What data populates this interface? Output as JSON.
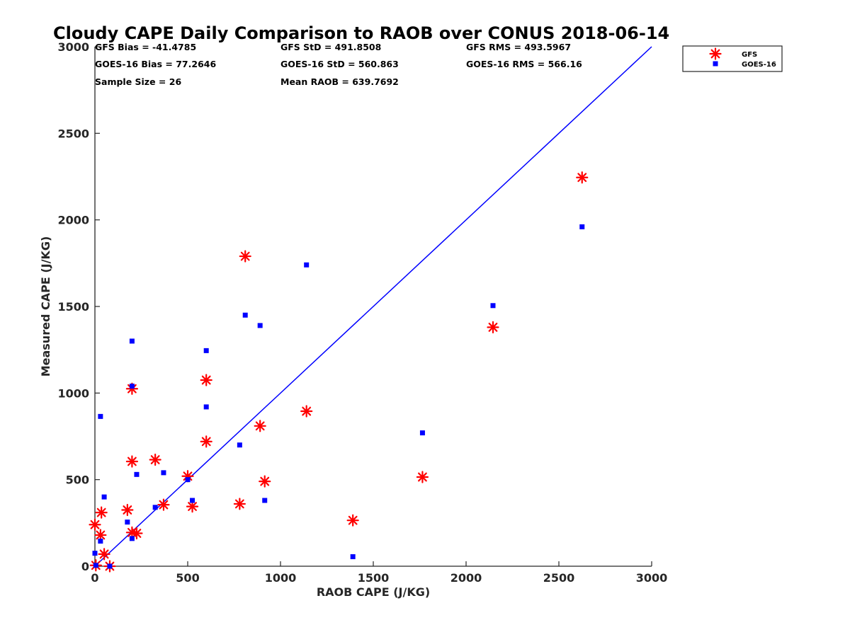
{
  "chart_data": {
    "type": "scatter",
    "title": "Cloudy CAPE Daily Comparison to RAOB over CONUS 2018-06-14",
    "xlabel": "RAOB CAPE (J/KG)",
    "ylabel": "Measured CAPE (J/KG)",
    "xlim": [
      0,
      3000
    ],
    "ylim": [
      0,
      3000
    ],
    "xticks": [
      0,
      500,
      1000,
      1500,
      2000,
      2500,
      3000
    ],
    "yticks": [
      0,
      500,
      1000,
      1500,
      2000,
      2500,
      3000
    ],
    "grid": false,
    "legend_position": "top-right",
    "reference_line": {
      "x": [
        0,
        3000
      ],
      "y": [
        0,
        3000
      ],
      "color": "#0000ff"
    },
    "stats": [
      {
        "text": "GFS Bias = -41.4785"
      },
      {
        "text": "GFS StD = 491.8508"
      },
      {
        "text": "GFS RMS = 493.5967"
      },
      {
        "text": "GOES-16 Bias = 77.2646"
      },
      {
        "text": "GOES-16 StD = 560.863"
      },
      {
        "text": "GOES-16 RMS = 566.16"
      },
      {
        "text": "Sample Size = 26"
      },
      {
        "text": "Mean RAOB = 639.7692"
      }
    ],
    "series": [
      {
        "name": "GFS",
        "marker": "asterisk",
        "color": "#ff0000",
        "points": [
          [
            0,
            240
          ],
          [
            5,
            5
          ],
          [
            30,
            180
          ],
          [
            35,
            310
          ],
          [
            50,
            70
          ],
          [
            80,
            0
          ],
          [
            175,
            325
          ],
          [
            200,
            1025
          ],
          [
            200,
            605
          ],
          [
            200,
            195
          ],
          [
            225,
            190
          ],
          [
            325,
            615
          ],
          [
            370,
            355
          ],
          [
            500,
            520
          ],
          [
            525,
            345
          ],
          [
            600,
            1075
          ],
          [
            600,
            720
          ],
          [
            780,
            360
          ],
          [
            810,
            1790
          ],
          [
            890,
            810
          ],
          [
            915,
            490
          ],
          [
            1140,
            895
          ],
          [
            1390,
            265
          ],
          [
            1765,
            515
          ],
          [
            2145,
            1380
          ],
          [
            2625,
            2245
          ]
        ]
      },
      {
        "name": "GOES-16",
        "marker": "square",
        "color": "#0000ff",
        "points": [
          [
            0,
            75
          ],
          [
            5,
            5
          ],
          [
            30,
            865
          ],
          [
            30,
            145
          ],
          [
            50,
            400
          ],
          [
            80,
            0
          ],
          [
            175,
            255
          ],
          [
            200,
            1300
          ],
          [
            200,
            1040
          ],
          [
            200,
            160
          ],
          [
            225,
            530
          ],
          [
            325,
            340
          ],
          [
            370,
            540
          ],
          [
            500,
            500
          ],
          [
            525,
            380
          ],
          [
            600,
            1245
          ],
          [
            600,
            920
          ],
          [
            780,
            700
          ],
          [
            810,
            1450
          ],
          [
            890,
            1390
          ],
          [
            915,
            380
          ],
          [
            1140,
            1740
          ],
          [
            1390,
            55
          ],
          [
            1765,
            770
          ],
          [
            2145,
            1505
          ],
          [
            2625,
            1960
          ]
        ]
      }
    ]
  }
}
